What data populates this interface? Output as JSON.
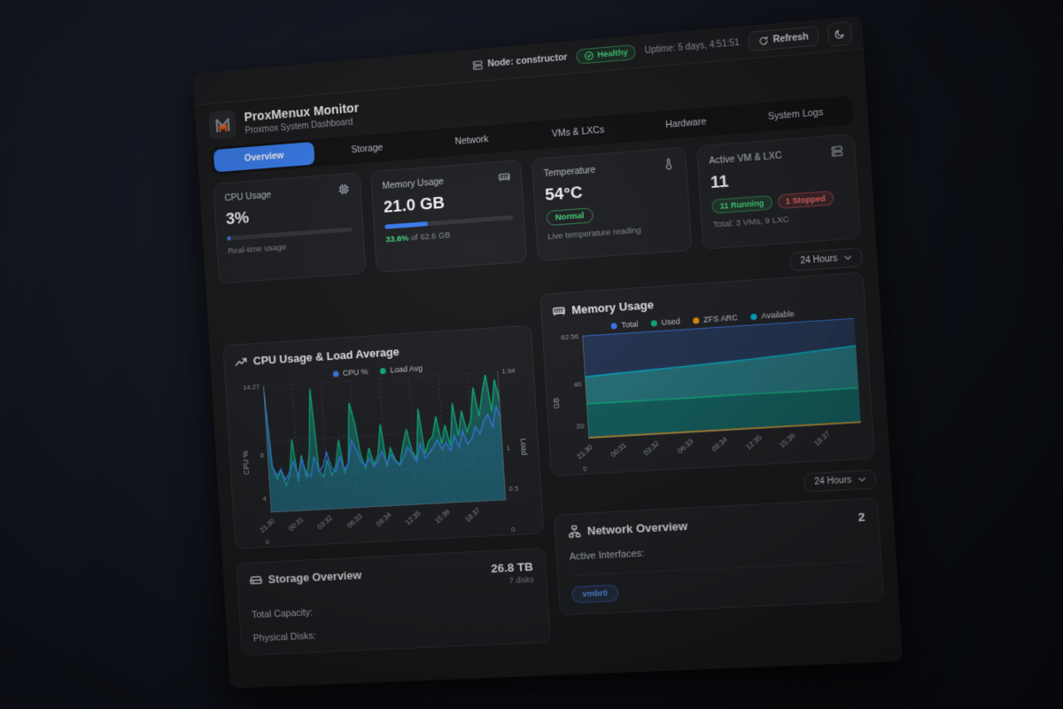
{
  "topbar": {
    "node_label": "Node: constructor",
    "health": "Healthy",
    "uptime": "Uptime: 5 days, 4:51:51",
    "refresh_label": "Refresh"
  },
  "brand": {
    "title": "ProxMenux Monitor",
    "subtitle": "Proxmox System Dashboard"
  },
  "tabs": [
    "Overview",
    "Storage",
    "Network",
    "VMs & LXCs",
    "Hardware",
    "System Logs"
  ],
  "active_tab": 0,
  "stats": {
    "cpu": {
      "label": "CPU Usage",
      "value": "3%",
      "percent": 3,
      "caption": "Real-time usage"
    },
    "memory": {
      "label": "Memory Usage",
      "value": "21.0 GB",
      "percent": 33.6,
      "caption_percent": "33.6%",
      "caption_rest": " of 62.6 GB"
    },
    "temperature": {
      "label": "Temperature",
      "value": "54°C",
      "badge": "Normal",
      "caption": "Live temperature reading"
    },
    "vms": {
      "label": "Active VM & LXC",
      "value": "11",
      "running": "11 Running",
      "stopped": "1 Stopped",
      "caption": "Total: 3 VMs, 9 LXC"
    }
  },
  "range_selector": "24 Hours",
  "colors": {
    "accent_blue": "#3b82f6",
    "green": "#10b981",
    "light_green": "#4ade80",
    "red": "#f87171",
    "orange": "#f59e0b",
    "cyan": "#06b6d4",
    "teal_fill": "#2dd4bf"
  },
  "chart_data": [
    {
      "type": "area",
      "title": "CPU Usage & Load Average",
      "x_ticks": [
        "21:30",
        "00:31",
        "03:32",
        "06:33",
        "09:34",
        "12:35",
        "15:36",
        "18:37"
      ],
      "y_left": {
        "label": "CPU %",
        "ticks": [
          "0",
          "4",
          "8",
          "14.27"
        ],
        "max": 14.27
      },
      "y_right": {
        "label": "Load",
        "ticks": [
          "0",
          "0.5",
          "1",
          "1.94"
        ],
        "max": 1.94
      },
      "legend": [
        {
          "name": "CPU %",
          "color": "#3b82f6"
        },
        {
          "name": "Load Avg",
          "color": "#10b981"
        }
      ],
      "grid_color": "#3c4049",
      "series": [
        {
          "name": "Load Avg",
          "axis": "right",
          "color": "#10b981",
          "fill": "rgba(20,184,166,0.42)",
          "values": [
            1.94,
            0.7,
            0.5,
            0.65,
            0.4,
            0.55,
            1.1,
            0.45,
            0.85,
            0.5,
            0.9,
            1.85,
            0.6,
            0.5,
            0.75,
            0.52,
            0.66,
            1.05,
            0.55,
            0.7,
            1.6,
            1.3,
            0.8,
            0.6,
            0.9,
            0.65,
            0.78,
            1.25,
            0.6,
            0.88,
            0.7,
            0.62,
            0.92,
            1.15,
            0.82,
            0.7,
            1.45,
            0.76,
            0.95,
            1.02,
            1.32,
            0.9,
            1.18,
            0.86,
            1.5,
            1.0,
            1.38,
            1.06,
            1.22,
            1.72,
            1.28,
            1.62,
            1.9,
            1.34,
            1.82,
            1.48
          ]
        },
        {
          "name": "CPU %",
          "axis": "left",
          "color": "#3b82f6",
          "fill": "rgba(59,130,246,0.18)",
          "values": [
            14.3,
            5.2,
            4.1,
            4.8,
            3.6,
            4.4,
            5.6,
            3.9,
            5.8,
            4.2,
            3.8,
            6.0,
            4.3,
            4.9,
            6.4,
            4.6,
            4.2,
            5.9,
            4.4,
            5.0,
            7.6,
            6.6,
            5.1,
            4.7,
            5.5,
            4.5,
            5.2,
            6.2,
            4.7,
            5.8,
            5.0,
            4.5,
            5.3,
            6.5,
            5.6,
            4.8,
            6.8,
            5.1,
            5.7,
            6.3,
            7.1,
            6.0,
            6.7,
            5.8,
            7.5,
            6.1,
            7.9,
            6.4,
            7.0,
            8.3,
            7.5,
            8.9,
            9.6,
            8.2,
            10.4,
            9.1
          ]
        }
      ]
    },
    {
      "type": "area",
      "title": "Memory Usage",
      "x_ticks": [
        "21:30",
        "00:31",
        "03:32",
        "06:33",
        "09:34",
        "12:35",
        "15:36",
        "18:37"
      ],
      "y_left": {
        "label": "GB",
        "ticks": [
          "0",
          "20",
          "40",
          "62.56"
        ],
        "max": 62.56
      },
      "legend": [
        {
          "name": "Total",
          "color": "#3b82f6"
        },
        {
          "name": "Used",
          "color": "#10b981"
        },
        {
          "name": "ZFS ARC",
          "color": "#f59e0b"
        },
        {
          "name": "Available",
          "color": "#06b6d4"
        }
      ],
      "grid_color": "#2e3a52",
      "series": [
        {
          "name": "Total",
          "axis": "left",
          "color": "#3b82f6",
          "fill": "rgba(44,74,130,0.55)",
          "values": [
            62.56,
            62.56,
            62.56,
            62.56,
            62.56,
            62.56,
            62.56,
            62.56,
            62.56
          ]
        },
        {
          "name": "Available",
          "axis": "left",
          "color": "#06b6d4",
          "fill": "rgba(45,212,191,0.42)",
          "values": [
            37.5,
            38.4,
            39.2,
            40.1,
            41.0,
            42.0,
            43.2,
            44.6,
            46.0
          ]
        },
        {
          "name": "Used",
          "axis": "left",
          "color": "#10b981",
          "fill": "rgba(9,88,82,0.6)",
          "values": [
            21.2,
            21.0,
            21.1,
            20.9,
            21.0,
            21.1,
            20.9,
            20.8,
            21.0
          ]
        },
        {
          "name": "ZFS ARC",
          "axis": "left",
          "color": "#f59e0b",
          "fill": null,
          "values": [
            0.5,
            0.5,
            0.5,
            0.5,
            0.5,
            0.5,
            0.5,
            0.5,
            0.5
          ]
        }
      ]
    }
  ],
  "storage": {
    "title": "Storage Overview",
    "value": "26.8 TB",
    "subvalue": "7 disks",
    "rows": [
      "Total Capacity:",
      "Physical Disks:"
    ]
  },
  "network": {
    "title": "Network Overview",
    "value": "2",
    "rows": [
      "Active Interfaces:"
    ],
    "badge": "vmbr0"
  }
}
